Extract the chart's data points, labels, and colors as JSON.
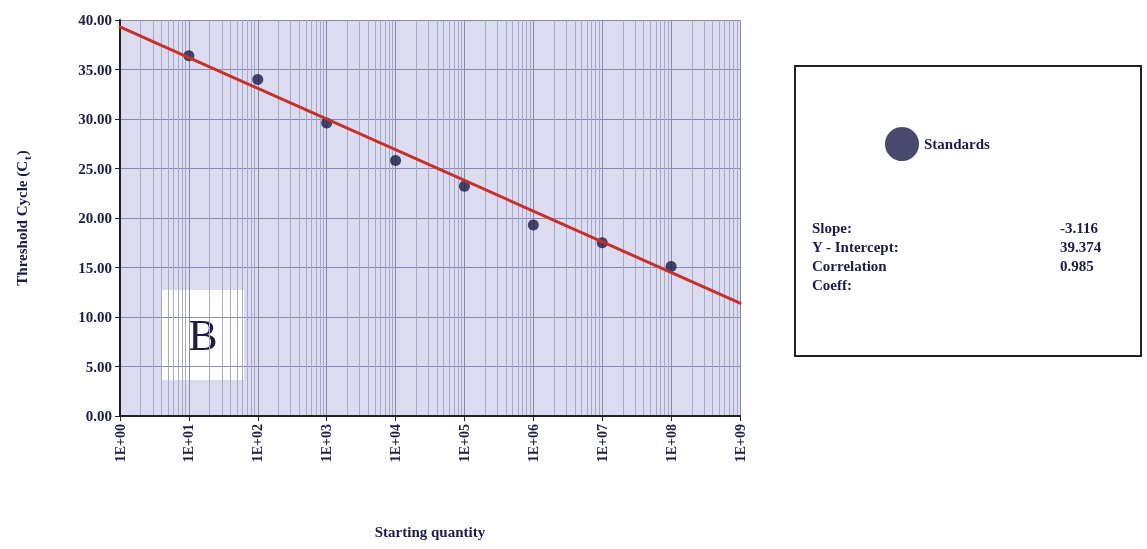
{
  "chart_data": {
    "type": "scatter",
    "xlabel": "Starting quantity",
    "ylabel": "Threshold Cycle (C$_{t}$)",
    "log": "x",
    "xlim": [
      1,
      1000000000
    ],
    "xticks": [
      {
        "value": 1,
        "label": "1E+00"
      },
      {
        "value": 10,
        "label": "1E+01"
      },
      {
        "value": 100,
        "label": "1E+02"
      },
      {
        "value": 1000,
        "label": "1E+03"
      },
      {
        "value": 10000,
        "label": "1E+04"
      },
      {
        "value": 100000,
        "label": "1E+05"
      },
      {
        "value": 1000000,
        "label": "1E+06"
      },
      {
        "value": 10000000,
        "label": "1E+07"
      },
      {
        "value": 100000000,
        "label": "1E+08"
      },
      {
        "value": 1000000000,
        "label": "1E+09"
      }
    ],
    "ylim": [
      0,
      40
    ],
    "yticks": [
      {
        "value": 0,
        "label": "0.00"
      },
      {
        "value": 5,
        "label": "5.00"
      },
      {
        "value": 10,
        "label": "10.00"
      },
      {
        "value": 15,
        "label": "15.00"
      },
      {
        "value": 20,
        "label": "20.00"
      },
      {
        "value": 25,
        "label": "25.00"
      },
      {
        "value": 30,
        "label": "30.00"
      },
      {
        "value": 35,
        "label": "35.00"
      },
      {
        "value": 40,
        "label": "40.00"
      }
    ],
    "grid": true,
    "legend": "right",
    "marker": "circle",
    "series": [
      {
        "name": "Standards",
        "color": "#1c1c48",
        "x": [
          10,
          100,
          1000,
          10000,
          100000,
          1000000,
          10000000,
          100000000
        ],
        "values": [
          36.4,
          34.0,
          29.6,
          25.8,
          23.2,
          19.3,
          17.5,
          15.1
        ]
      },
      {
        "type": "line",
        "marker": "none",
        "color": "#c8302c",
        "x": [
          1,
          1000000000
        ],
        "values": [
          39.3,
          11.4
        ]
      }
    ],
    "annotations": [
      "B",
      "Slope:",
      "-3.116",
      "Y - Intercept:",
      "39.374",
      "Correlation Coeff:",
      "0.985"
    ]
  }
}
